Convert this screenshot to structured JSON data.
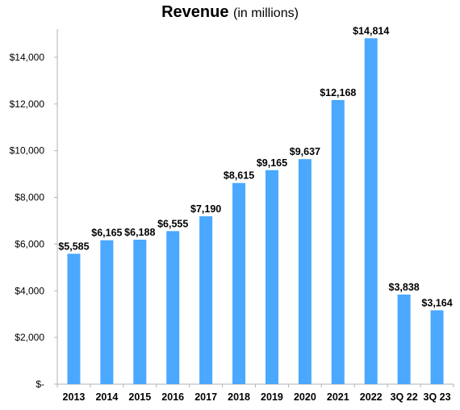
{
  "chart_data": {
    "type": "bar",
    "title": "Revenue",
    "subtitle": "(in millions)",
    "categories": [
      "2013",
      "2014",
      "2015",
      "2016",
      "2017",
      "2018",
      "2019",
      "2020",
      "2021",
      "2022",
      "3Q 22",
      "3Q 23"
    ],
    "values": [
      5585,
      6165,
      6188,
      6555,
      7190,
      8615,
      9165,
      9637,
      12168,
      14814,
      3838,
      3164
    ],
    "data_labels": [
      "$5,585",
      "$6,165",
      "$6,188",
      "$6,555",
      "$7,190",
      "$8,615",
      "$9,165",
      "$9,637",
      "$12,168",
      "$14,814",
      "$3,838",
      "$3,164"
    ],
    "ylim": [
      0,
      15000
    ],
    "yticks": [
      0,
      2000,
      4000,
      6000,
      8000,
      10000,
      12000,
      14000
    ],
    "ytick_labels": [
      "$-",
      "$2,000",
      "$4,000",
      "$6,000",
      "$8,000",
      "$10,000",
      "$12,000",
      "$14,000"
    ],
    "xlabel": "",
    "ylabel": "",
    "grid": false,
    "bar_color": "#4aa8ff",
    "axis_color": "#b3b3b3"
  }
}
